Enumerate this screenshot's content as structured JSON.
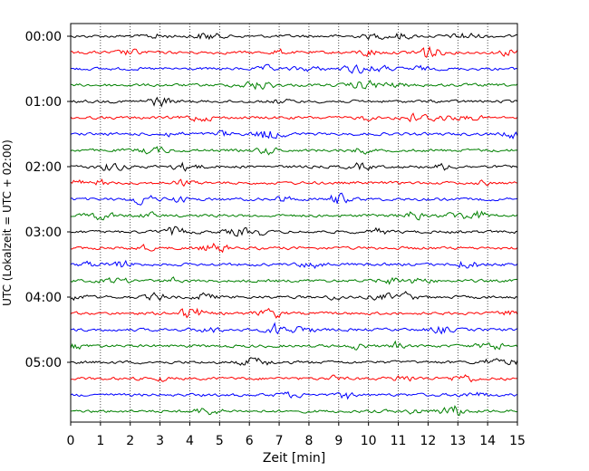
{
  "chart_data": {
    "type": "line",
    "title": "",
    "xlabel": "Zeit  [min]",
    "ylabel": "UTC (Lokalzeit = UTC + 02:00)",
    "xlim": [
      0,
      15
    ],
    "x_ticks": [
      0,
      1,
      2,
      3,
      4,
      5,
      6,
      7,
      8,
      9,
      10,
      11,
      12,
      13,
      14,
      15
    ],
    "y_ticks": [
      "00:00",
      "01:00",
      "02:00",
      "03:00",
      "04:00",
      "05:00"
    ],
    "row_minutes": 15,
    "trace_count": 24,
    "trace_colors": [
      "#000000",
      "#ff0000",
      "#0000ff",
      "#008000"
    ],
    "grid": "vertical-dotted",
    "legend": "none"
  }
}
